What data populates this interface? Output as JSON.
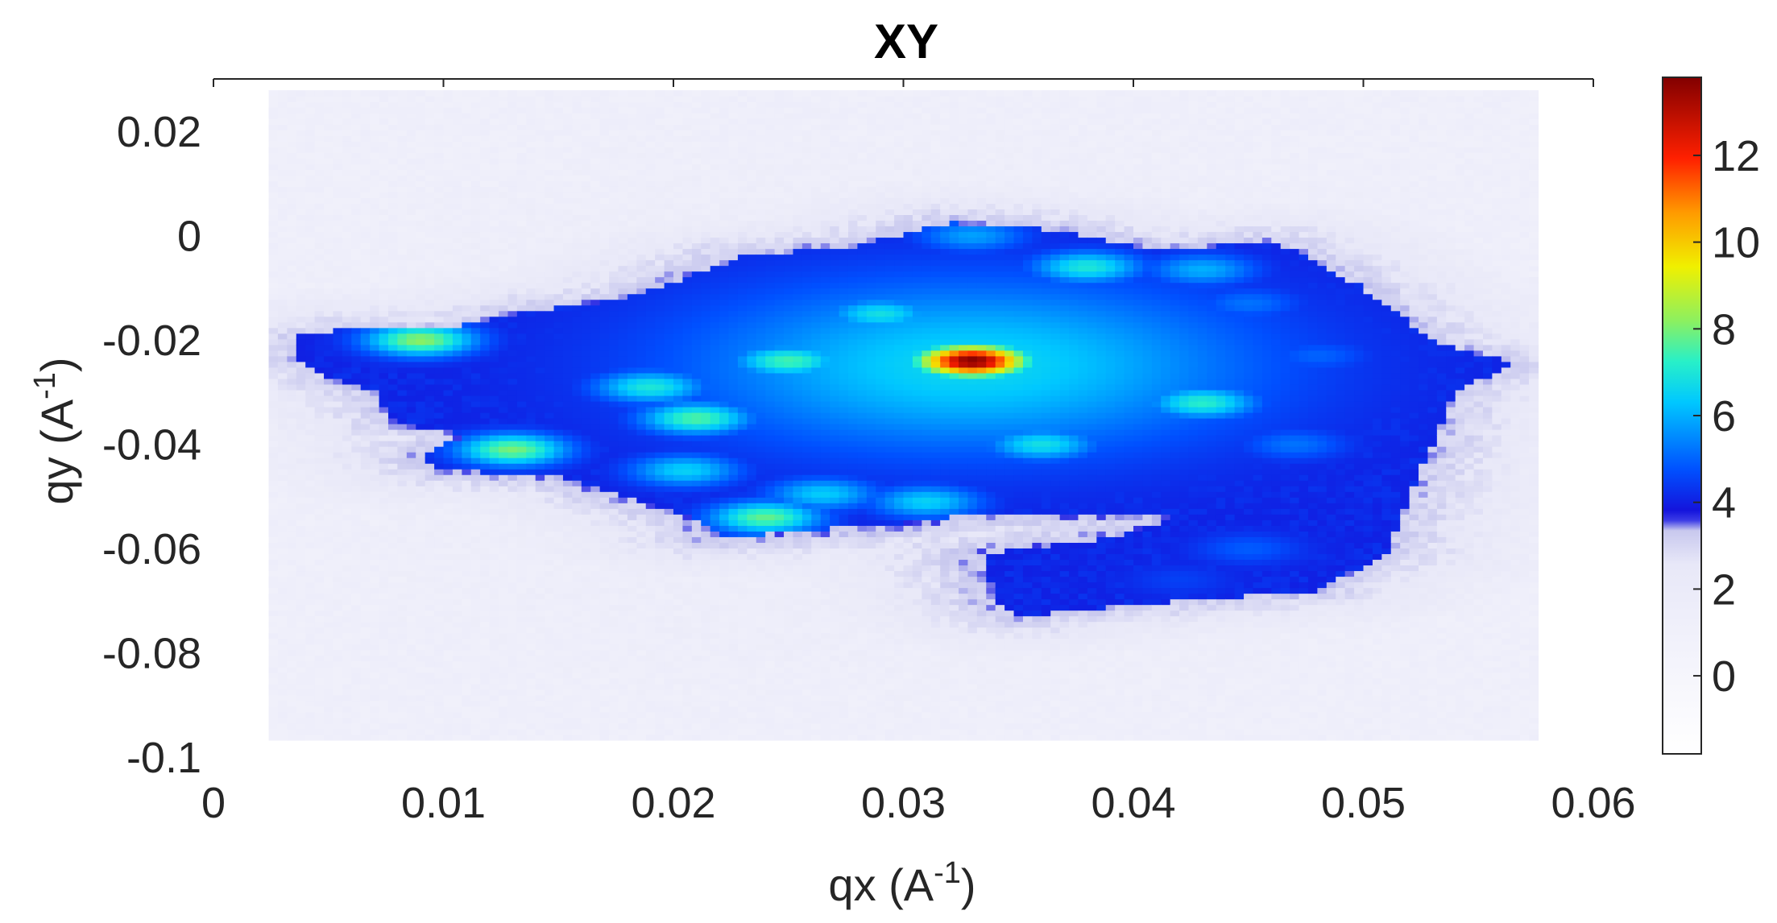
{
  "chart_data": {
    "type": "heatmap",
    "title": "XY",
    "xlabel": {
      "main": "qx (A",
      "sup": "-1",
      "tail": ")"
    },
    "ylabel": {
      "main": "qy (A",
      "sup": "-1",
      "tail": ")"
    },
    "xlim": [
      0,
      0.06
    ],
    "ylim": [
      -0.1,
      0.03
    ],
    "x_ticks": [
      0,
      0.01,
      0.02,
      0.03,
      0.04,
      0.05,
      0.06
    ],
    "x_tick_labels": [
      "0",
      "0.01",
      "0.02",
      "0.03",
      "0.04",
      "0.05",
      "0.06"
    ],
    "y_ticks": [
      0.02,
      0,
      -0.02,
      -0.04,
      -0.06,
      -0.08,
      -0.1
    ],
    "y_tick_labels": [
      "0.02",
      "0",
      "-0.02",
      "-0.04",
      "-0.06",
      "-0.08",
      "-0.1"
    ],
    "colorbar": {
      "range": [
        -1.8,
        13.8
      ],
      "ticks": [
        0,
        2,
        4,
        6,
        8,
        10,
        12
      ],
      "tick_labels": [
        "0",
        "2",
        "4",
        "6",
        "8",
        "10",
        "12"
      ],
      "colormap": "white-lavender below ~3.5, jet above",
      "colors": [
        "#ffffff",
        "#cfd0ee",
        "#2a2ae0",
        "#0050ff",
        "#00c8ff",
        "#2ff0c0",
        "#8cf060",
        "#f0f000",
        "#ff9a00",
        "#ff2000",
        "#820000"
      ]
    },
    "background_level": 1.5,
    "region": {
      "description": "main intensity region",
      "points": [
        [
          0.0035,
          -0.0195
        ],
        [
          0.006,
          -0.0175
        ],
        [
          0.01,
          -0.018
        ],
        [
          0.013,
          -0.015
        ],
        [
          0.018,
          -0.012
        ],
        [
          0.023,
          -0.004
        ],
        [
          0.028,
          -0.002
        ],
        [
          0.032,
          0.0025
        ],
        [
          0.037,
          0.001
        ],
        [
          0.041,
          -0.003
        ],
        [
          0.046,
          -0.001
        ],
        [
          0.048,
          -0.005
        ],
        [
          0.05,
          -0.01
        ],
        [
          0.053,
          -0.02
        ],
        [
          0.0565,
          -0.0245
        ],
        [
          0.054,
          -0.03
        ],
        [
          0.053,
          -0.04
        ],
        [
          0.052,
          -0.05
        ],
        [
          0.051,
          -0.061
        ],
        [
          0.048,
          -0.068
        ],
        [
          0.042,
          -0.07
        ],
        [
          0.035,
          -0.073
        ],
        [
          0.034,
          -0.07
        ],
        [
          0.0335,
          -0.061
        ],
        [
          0.039,
          -0.058
        ],
        [
          0.042,
          -0.054
        ],
        [
          0.034,
          -0.053
        ],
        [
          0.03,
          -0.055
        ],
        [
          0.027,
          -0.056
        ],
        [
          0.022,
          -0.058
        ],
        [
          0.021,
          -0.054
        ],
        [
          0.018,
          -0.05
        ],
        [
          0.015,
          -0.046
        ],
        [
          0.01,
          -0.045
        ],
        [
          0.009,
          -0.042
        ],
        [
          0.011,
          -0.038
        ],
        [
          0.008,
          -0.036
        ],
        [
          0.007,
          -0.03
        ],
        [
          0.005,
          -0.027
        ],
        [
          0.0035,
          -0.024
        ]
      ]
    },
    "hotspots": [
      {
        "qx": 0.033,
        "qy": -0.024,
        "value": 13.8
      },
      {
        "qx": 0.033,
        "qy": -0.0245,
        "value": 8.0
      },
      {
        "qx": 0.033,
        "qy": -0.026,
        "value": 6.5
      },
      {
        "qx": 0.009,
        "qy": -0.02,
        "value": 8.2
      },
      {
        "qx": 0.013,
        "qy": -0.041,
        "value": 8.0
      },
      {
        "qx": 0.024,
        "qy": -0.054,
        "value": 7.8
      },
      {
        "qx": 0.025,
        "qy": -0.024,
        "value": 7.5
      },
      {
        "qx": 0.021,
        "qy": -0.035,
        "value": 7.6
      },
      {
        "qx": 0.019,
        "qy": -0.029,
        "value": 7.0
      },
      {
        "qx": 0.0205,
        "qy": -0.045,
        "value": 6.5
      },
      {
        "qx": 0.0265,
        "qy": -0.0495,
        "value": 6.4
      },
      {
        "qx": 0.031,
        "qy": -0.051,
        "value": 6.5
      },
      {
        "qx": 0.038,
        "qy": -0.006,
        "value": 7.0
      },
      {
        "qx": 0.043,
        "qy": -0.0065,
        "value": 6.0
      },
      {
        "qx": 0.033,
        "qy": -0.0,
        "value": 5.8
      },
      {
        "qx": 0.029,
        "qy": -0.015,
        "value": 6.8
      },
      {
        "qx": 0.043,
        "qy": -0.032,
        "value": 7.2
      },
      {
        "qx": 0.036,
        "qy": -0.04,
        "value": 6.8
      },
      {
        "qx": 0.047,
        "qy": -0.04,
        "value": 5.2
      },
      {
        "qx": 0.048,
        "qy": -0.023,
        "value": 5.0
      },
      {
        "qx": 0.045,
        "qy": -0.013,
        "value": 5.2
      },
      {
        "qx": 0.014,
        "qy": -0.011,
        "value": 5.0
      },
      {
        "qx": 0.045,
        "qy": -0.06,
        "value": 4.9
      },
      {
        "qx": 0.042,
        "qy": -0.066,
        "value": 4.5
      }
    ],
    "grid": false
  }
}
